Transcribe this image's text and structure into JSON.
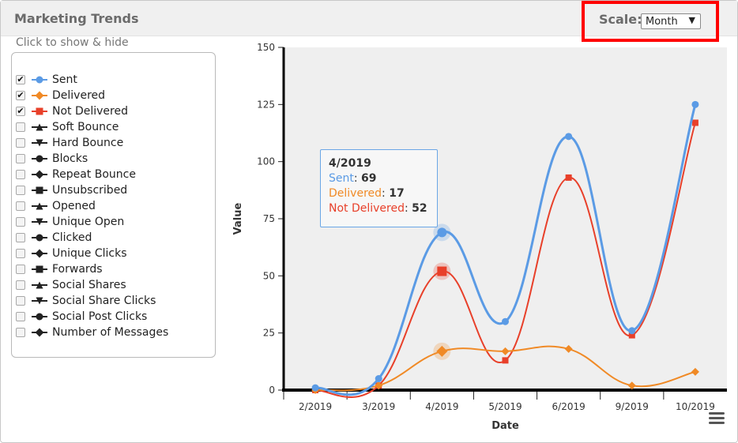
{
  "header": {
    "title": "Marketing Trends"
  },
  "scale": {
    "label": "Scale:",
    "selected": "Month"
  },
  "legend": {
    "hint": "Click to show & hide",
    "items": [
      {
        "label": "Sent",
        "checked": true,
        "color": "#5b9be5",
        "marker": "circle"
      },
      {
        "label": "Delivered",
        "checked": true,
        "color": "#f08a26",
        "marker": "diamond"
      },
      {
        "label": "Not Delivered",
        "checked": true,
        "color": "#e8402a",
        "marker": "square"
      },
      {
        "label": "Soft Bounce",
        "checked": false,
        "color": "#222222",
        "marker": "triangle"
      },
      {
        "label": "Hard Bounce",
        "checked": false,
        "color": "#222222",
        "marker": "triangle-down"
      },
      {
        "label": "Blocks",
        "checked": false,
        "color": "#222222",
        "marker": "circle"
      },
      {
        "label": "Repeat Bounce",
        "checked": false,
        "color": "#222222",
        "marker": "diamond"
      },
      {
        "label": "Unsubscribed",
        "checked": false,
        "color": "#222222",
        "marker": "square"
      },
      {
        "label": "Opened",
        "checked": false,
        "color": "#222222",
        "marker": "triangle"
      },
      {
        "label": "Unique Open",
        "checked": false,
        "color": "#222222",
        "marker": "triangle-down"
      },
      {
        "label": "Clicked",
        "checked": false,
        "color": "#222222",
        "marker": "circle"
      },
      {
        "label": "Unique Clicks",
        "checked": false,
        "color": "#222222",
        "marker": "diamond"
      },
      {
        "label": "Forwards",
        "checked": false,
        "color": "#222222",
        "marker": "square"
      },
      {
        "label": "Social Shares",
        "checked": false,
        "color": "#222222",
        "marker": "triangle"
      },
      {
        "label": "Social Share Clicks",
        "checked": false,
        "color": "#222222",
        "marker": "triangle-down"
      },
      {
        "label": "Social Post Clicks",
        "checked": false,
        "color": "#222222",
        "marker": "circle"
      },
      {
        "label": "Number of Messages",
        "checked": false,
        "color": "#222222",
        "marker": "diamond"
      }
    ]
  },
  "chart_data": {
    "type": "line",
    "categories": [
      "2/2019",
      "3/2019",
      "4/2019",
      "5/2019",
      "6/2019",
      "9/2019",
      "10/2019"
    ],
    "series": [
      {
        "name": "Sent",
        "color": "#5b9be5",
        "marker": "circle",
        "values": [
          1,
          5,
          69,
          30,
          111,
          26,
          125
        ]
      },
      {
        "name": "Delivered",
        "color": "#f08a26",
        "marker": "diamond",
        "values": [
          0,
          2,
          17,
          17,
          18,
          2,
          8
        ]
      },
      {
        "name": "Not Delivered",
        "color": "#e8402a",
        "marker": "square",
        "values": [
          0,
          2,
          52,
          13,
          93,
          24,
          117
        ]
      }
    ],
    "xlabel": "Date",
    "ylabel": "Value",
    "ylim": [
      0,
      150
    ],
    "yticks": [
      "0",
      "25",
      "50",
      "75",
      "100",
      "125",
      "150"
    ],
    "grid": false,
    "highlight_index": 2
  },
  "tooltip": {
    "date": "4/2019",
    "rows": [
      {
        "name": "Sent",
        "value": "69",
        "color": "#5b9be5"
      },
      {
        "name": "Delivered",
        "value": "17",
        "color": "#f08a26"
      },
      {
        "name": "Not Delivered",
        "value": "52",
        "color": "#e8402a"
      }
    ]
  },
  "menu": {
    "icon": "hamburger-menu-icon"
  }
}
